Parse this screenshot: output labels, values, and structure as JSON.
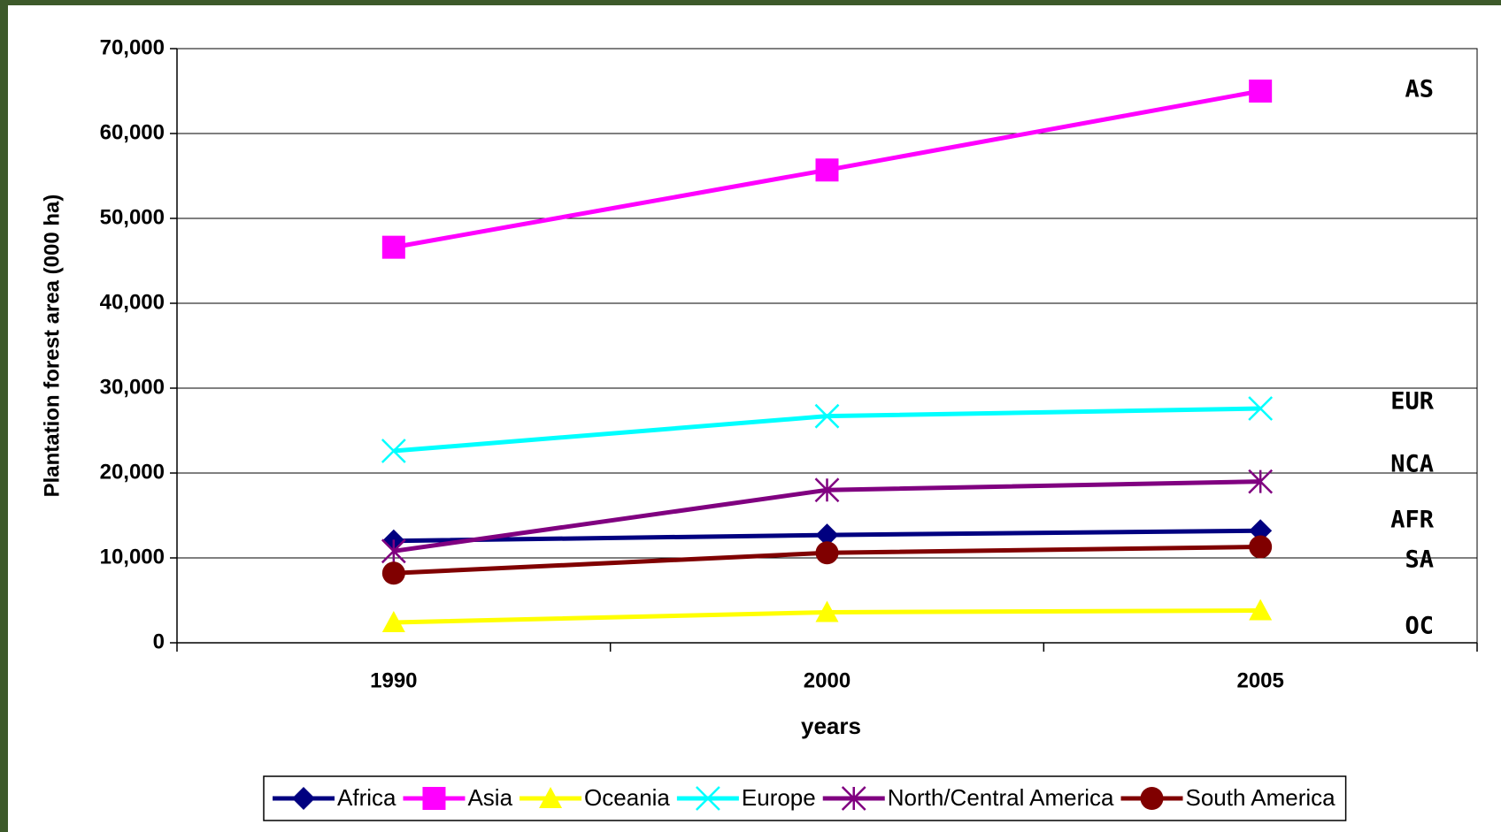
{
  "chart_data": {
    "type": "line",
    "y_label": "Plantation forest area (000 ha)",
    "x_label": "years",
    "categories": [
      "1990",
      "2000",
      "2005"
    ],
    "ylim": [
      0,
      70000
    ],
    "yticks": [
      0,
      {
        "value": 10000,
        "label": "10,000"
      },
      {
        "value": 20000,
        "label": "20,000"
      },
      {
        "value": 30000,
        "label": "30,000"
      },
      {
        "value": 40000,
        "label": "40,000"
      },
      {
        "value": 50000,
        "label": "50,000"
      },
      {
        "value": 60000,
        "label": "60,000"
      },
      {
        "value": 70000,
        "label": "70,000"
      }
    ],
    "grid": true,
    "legend": "bottom",
    "series": [
      {
        "name": "Africa",
        "color": "#000080",
        "marker": "diamond",
        "values": [
          12000,
          12700,
          13200
        ]
      },
      {
        "name": "Asia",
        "color": "#ff00ff",
        "marker": "square",
        "values": [
          46600,
          55700,
          65000
        ]
      },
      {
        "name": "Oceania",
        "color": "#ffff00",
        "marker": "triangle",
        "values": [
          2400,
          3600,
          3800
        ]
      },
      {
        "name": "Europe",
        "color": "#00ffff",
        "marker": "x",
        "values": [
          22600,
          26700,
          27600
        ]
      },
      {
        "name": "North/Central America",
        "color": "#800080",
        "marker": "star",
        "values": [
          10800,
          18000,
          19000
        ]
      },
      {
        "name": "South America",
        "color": "#800000",
        "marker": "circle",
        "values": [
          8200,
          10600,
          11300
        ]
      }
    ],
    "annotations": [
      "AS",
      "EUR",
      "NCA",
      "AFR",
      "SA",
      "OC"
    ]
  }
}
